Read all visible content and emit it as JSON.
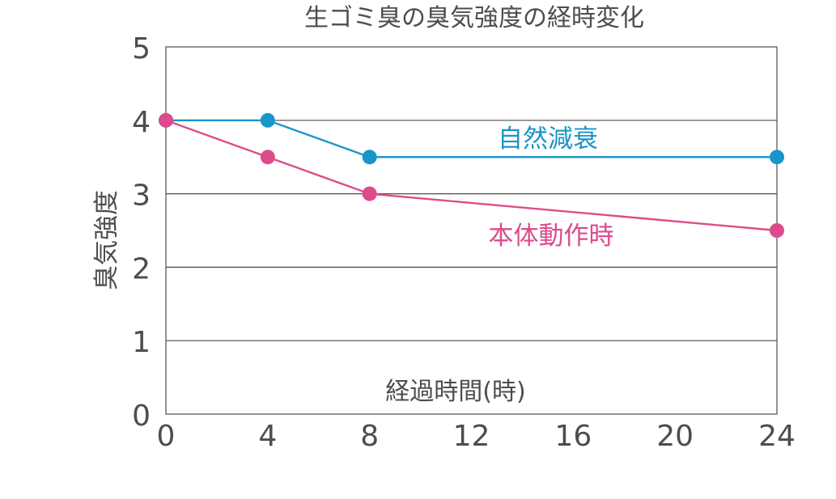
{
  "chart_data": {
    "type": "line",
    "title": "生ゴミ臭の臭気強度の経時変化",
    "xlabel": "経過時間(時)",
    "ylabel": "臭気強度",
    "x": [
      0,
      4,
      8,
      24
    ],
    "xlim": [
      0,
      24
    ],
    "ylim": [
      0,
      5
    ],
    "x_ticks": [
      0,
      4,
      8,
      12,
      16,
      20,
      24
    ],
    "y_ticks": [
      0,
      1,
      2,
      3,
      4,
      5
    ],
    "grid": "horizontal",
    "series": [
      {
        "name": "自然減衰",
        "values": [
          4,
          4,
          3.5,
          3.5
        ],
        "color": "#1a95c8"
      },
      {
        "name": "本体動作時",
        "values": [
          4,
          3.5,
          3,
          2.5
        ],
        "color": "#dc4c8c"
      }
    ]
  }
}
